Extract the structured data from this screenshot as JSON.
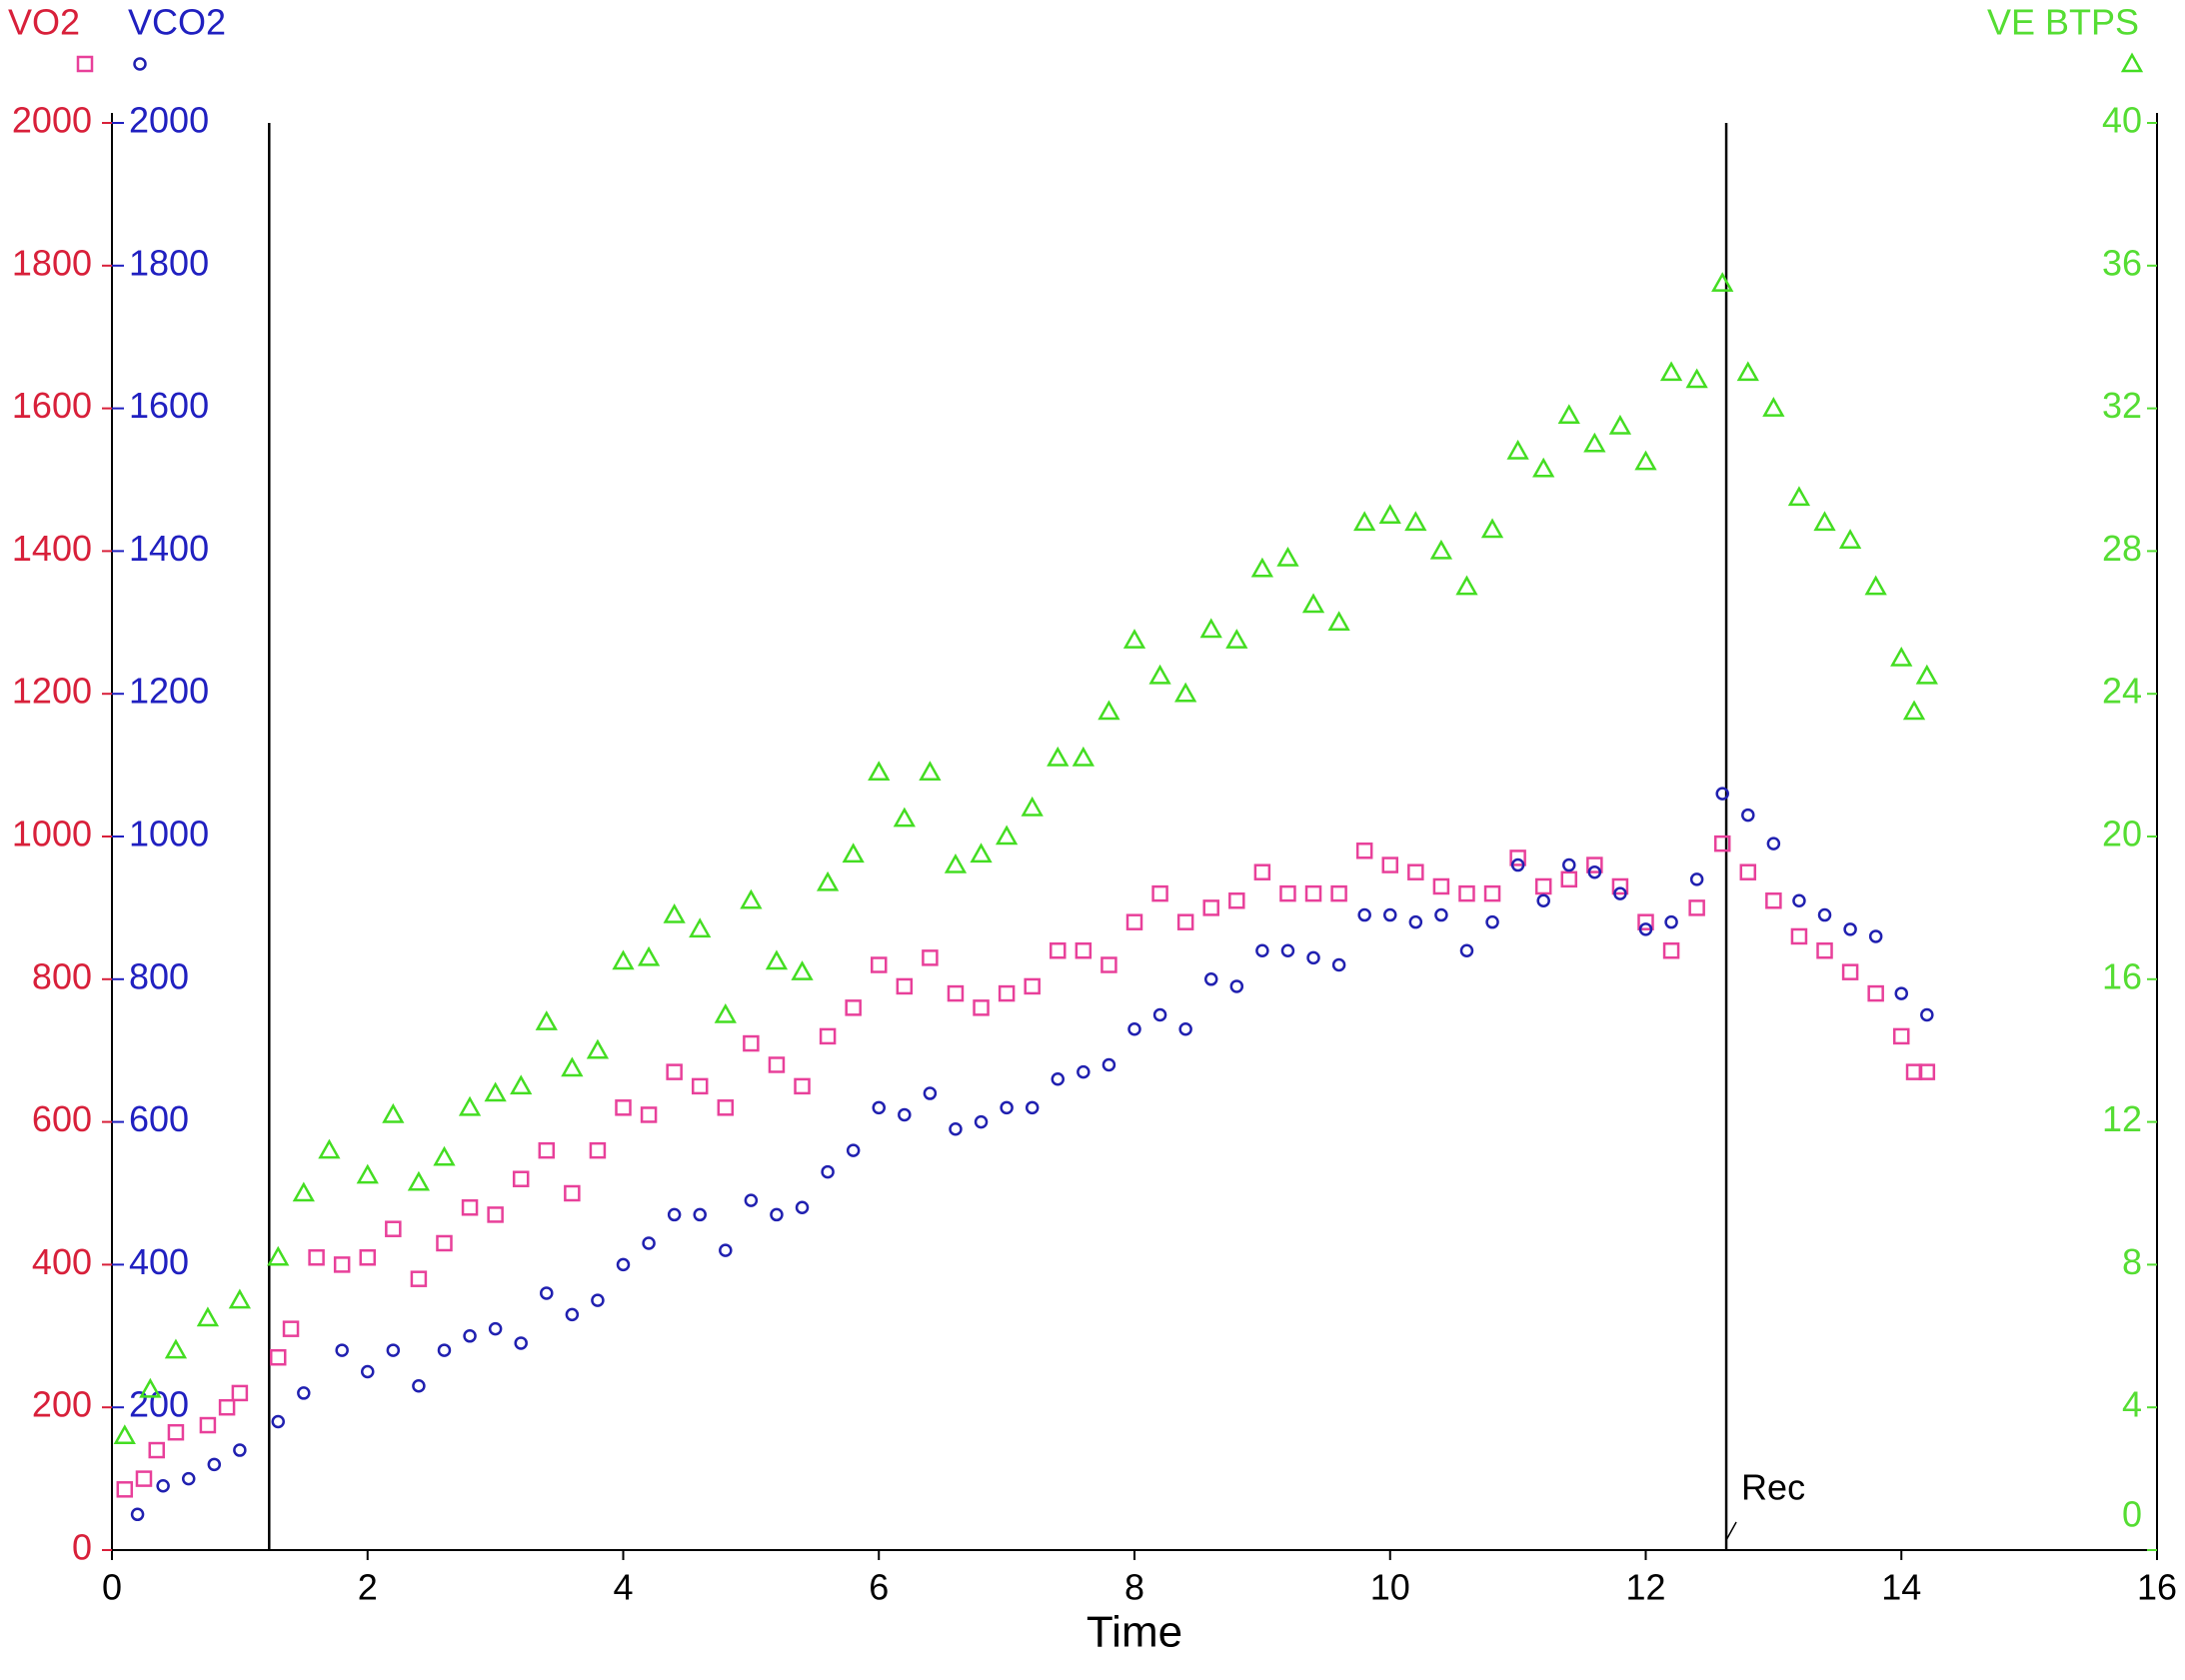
{
  "chart_data": {
    "type": "scatter",
    "x_label": "Time",
    "xlim": [
      0,
      16
    ],
    "xticks": [
      0,
      2,
      4,
      6,
      8,
      10,
      12,
      14,
      16
    ],
    "ylim": [
      0,
      2000
    ],
    "yticks": [
      0,
      200,
      400,
      600,
      800,
      1000,
      1200,
      1400,
      1600,
      1800,
      2000
    ],
    "yticks_vco2": [
      200,
      400,
      600,
      800,
      1000,
      1200,
      1400,
      1600,
      1800,
      2000
    ],
    "y2lim": [
      0,
      40
    ],
    "y2ticks": [
      0,
      4,
      8,
      12,
      16,
      20,
      24,
      28,
      32,
      36,
      40
    ],
    "vlines": [
      {
        "x": 1.23
      },
      {
        "x": 12.63,
        "label": "Rec"
      }
    ],
    "series": [
      {
        "name": "VO2",
        "color": "#e8409a",
        "label_color": "#d8203a",
        "marker": "square",
        "x": [
          0.1,
          0.25,
          0.35,
          0.5,
          0.75,
          0.9,
          1.0,
          1.3,
          1.4,
          1.6,
          1.8,
          2.0,
          2.2,
          2.4,
          2.6,
          2.8,
          3.0,
          3.2,
          3.4,
          3.6,
          3.8,
          4.0,
          4.2,
          4.4,
          4.6,
          4.8,
          5.0,
          5.2,
          5.4,
          5.6,
          5.8,
          6.0,
          6.2,
          6.4,
          6.6,
          6.8,
          7.0,
          7.2,
          7.4,
          7.6,
          7.8,
          8.0,
          8.2,
          8.4,
          8.6,
          8.8,
          9.0,
          9.2,
          9.4,
          9.6,
          9.8,
          10.0,
          10.2,
          10.4,
          10.6,
          10.8,
          11.0,
          11.2,
          11.4,
          11.6,
          11.8,
          12.0,
          12.2,
          12.4,
          12.6,
          12.8,
          13.0,
          13.2,
          13.4,
          13.6,
          13.8,
          14.0,
          14.1,
          14.2
        ],
        "values": [
          85,
          100,
          140,
          165,
          175,
          200,
          220,
          270,
          310,
          410,
          400,
          410,
          450,
          380,
          430,
          480,
          470,
          520,
          560,
          500,
          560,
          620,
          610,
          670,
          650,
          620,
          710,
          680,
          650,
          720,
          760,
          820,
          790,
          830,
          780,
          760,
          780,
          790,
          840,
          840,
          820,
          880,
          920,
          880,
          900,
          910,
          950,
          920,
          920,
          920,
          980,
          960,
          950,
          930,
          920,
          920,
          970,
          930,
          940,
          960,
          930,
          880,
          840,
          900,
          990,
          950,
          910,
          860,
          840,
          810,
          780,
          720,
          670,
          670
        ]
      },
      {
        "name": "VCO2",
        "color": "#2020b0",
        "label_color": "#2020c0",
        "marker": "circle",
        "x": [
          0.2,
          0.4,
          0.6,
          0.8,
          1.0,
          1.3,
          1.5,
          1.8,
          2.0,
          2.2,
          2.4,
          2.6,
          2.8,
          3.0,
          3.2,
          3.4,
          3.6,
          3.8,
          4.0,
          4.2,
          4.4,
          4.6,
          4.8,
          5.0,
          5.2,
          5.4,
          5.6,
          5.8,
          6.0,
          6.2,
          6.4,
          6.6,
          6.8,
          7.0,
          7.2,
          7.4,
          7.6,
          7.8,
          8.0,
          8.2,
          8.4,
          8.6,
          8.8,
          9.0,
          9.2,
          9.4,
          9.6,
          9.8,
          10.0,
          10.2,
          10.4,
          10.6,
          10.8,
          11.0,
          11.2,
          11.4,
          11.6,
          11.8,
          12.0,
          12.2,
          12.4,
          12.6,
          12.8,
          13.0,
          13.2,
          13.4,
          13.6,
          13.8,
          14.0,
          14.2
        ],
        "values": [
          50,
          90,
          100,
          120,
          140,
          180,
          220,
          280,
          250,
          280,
          230,
          280,
          300,
          310,
          290,
          360,
          330,
          350,
          400,
          430,
          470,
          470,
          420,
          490,
          470,
          480,
          530,
          560,
          620,
          610,
          640,
          590,
          600,
          620,
          620,
          660,
          670,
          680,
          730,
          750,
          730,
          800,
          790,
          840,
          840,
          830,
          820,
          890,
          890,
          880,
          890,
          840,
          880,
          960,
          910,
          960,
          950,
          920,
          870,
          880,
          940,
          1060,
          1030,
          990,
          910,
          890,
          870,
          860,
          780,
          750
        ]
      },
      {
        "name": "VE BTPS",
        "color": "#44dd22",
        "label_color": "#55dd33",
        "marker": "triangle",
        "axis": "y2",
        "x": [
          0.1,
          0.3,
          0.5,
          0.75,
          1.0,
          1.3,
          1.5,
          1.7,
          2.0,
          2.2,
          2.4,
          2.6,
          2.8,
          3.0,
          3.2,
          3.4,
          3.6,
          3.8,
          4.0,
          4.2,
          4.4,
          4.6,
          4.8,
          5.0,
          5.2,
          5.4,
          5.6,
          5.8,
          6.0,
          6.2,
          6.4,
          6.6,
          6.8,
          7.0,
          7.2,
          7.4,
          7.6,
          7.8,
          8.0,
          8.2,
          8.4,
          8.6,
          8.8,
          9.0,
          9.2,
          9.4,
          9.6,
          9.8,
          10.0,
          10.2,
          10.4,
          10.6,
          10.8,
          11.0,
          11.2,
          11.4,
          11.6,
          11.8,
          12.0,
          12.2,
          12.4,
          12.6,
          12.8,
          13.0,
          13.2,
          13.4,
          13.6,
          13.8,
          14.0,
          14.1,
          14.2
        ],
        "values": [
          3.2,
          4.5,
          5.6,
          6.5,
          7.0,
          8.2,
          10,
          11.2,
          10.5,
          12.2,
          10.3,
          11,
          12.4,
          12.8,
          13,
          14.8,
          13.5,
          14,
          16.5,
          16.6,
          17.8,
          17.4,
          15,
          18.2,
          16.5,
          16.2,
          18.7,
          19.5,
          21.8,
          20.5,
          21.8,
          19.2,
          19.5,
          20,
          20.8,
          22.2,
          22.2,
          23.5,
          25.5,
          24.5,
          24,
          25.8,
          25.5,
          27.5,
          27.8,
          26.5,
          26,
          28.8,
          29,
          28.8,
          28,
          27,
          28.6,
          30.8,
          30.3,
          31.8,
          31,
          31.5,
          30.5,
          33,
          32.8,
          35.5,
          33,
          32,
          29.5,
          28.8,
          28.3,
          27,
          25,
          23.5,
          24.5
        ]
      }
    ]
  }
}
